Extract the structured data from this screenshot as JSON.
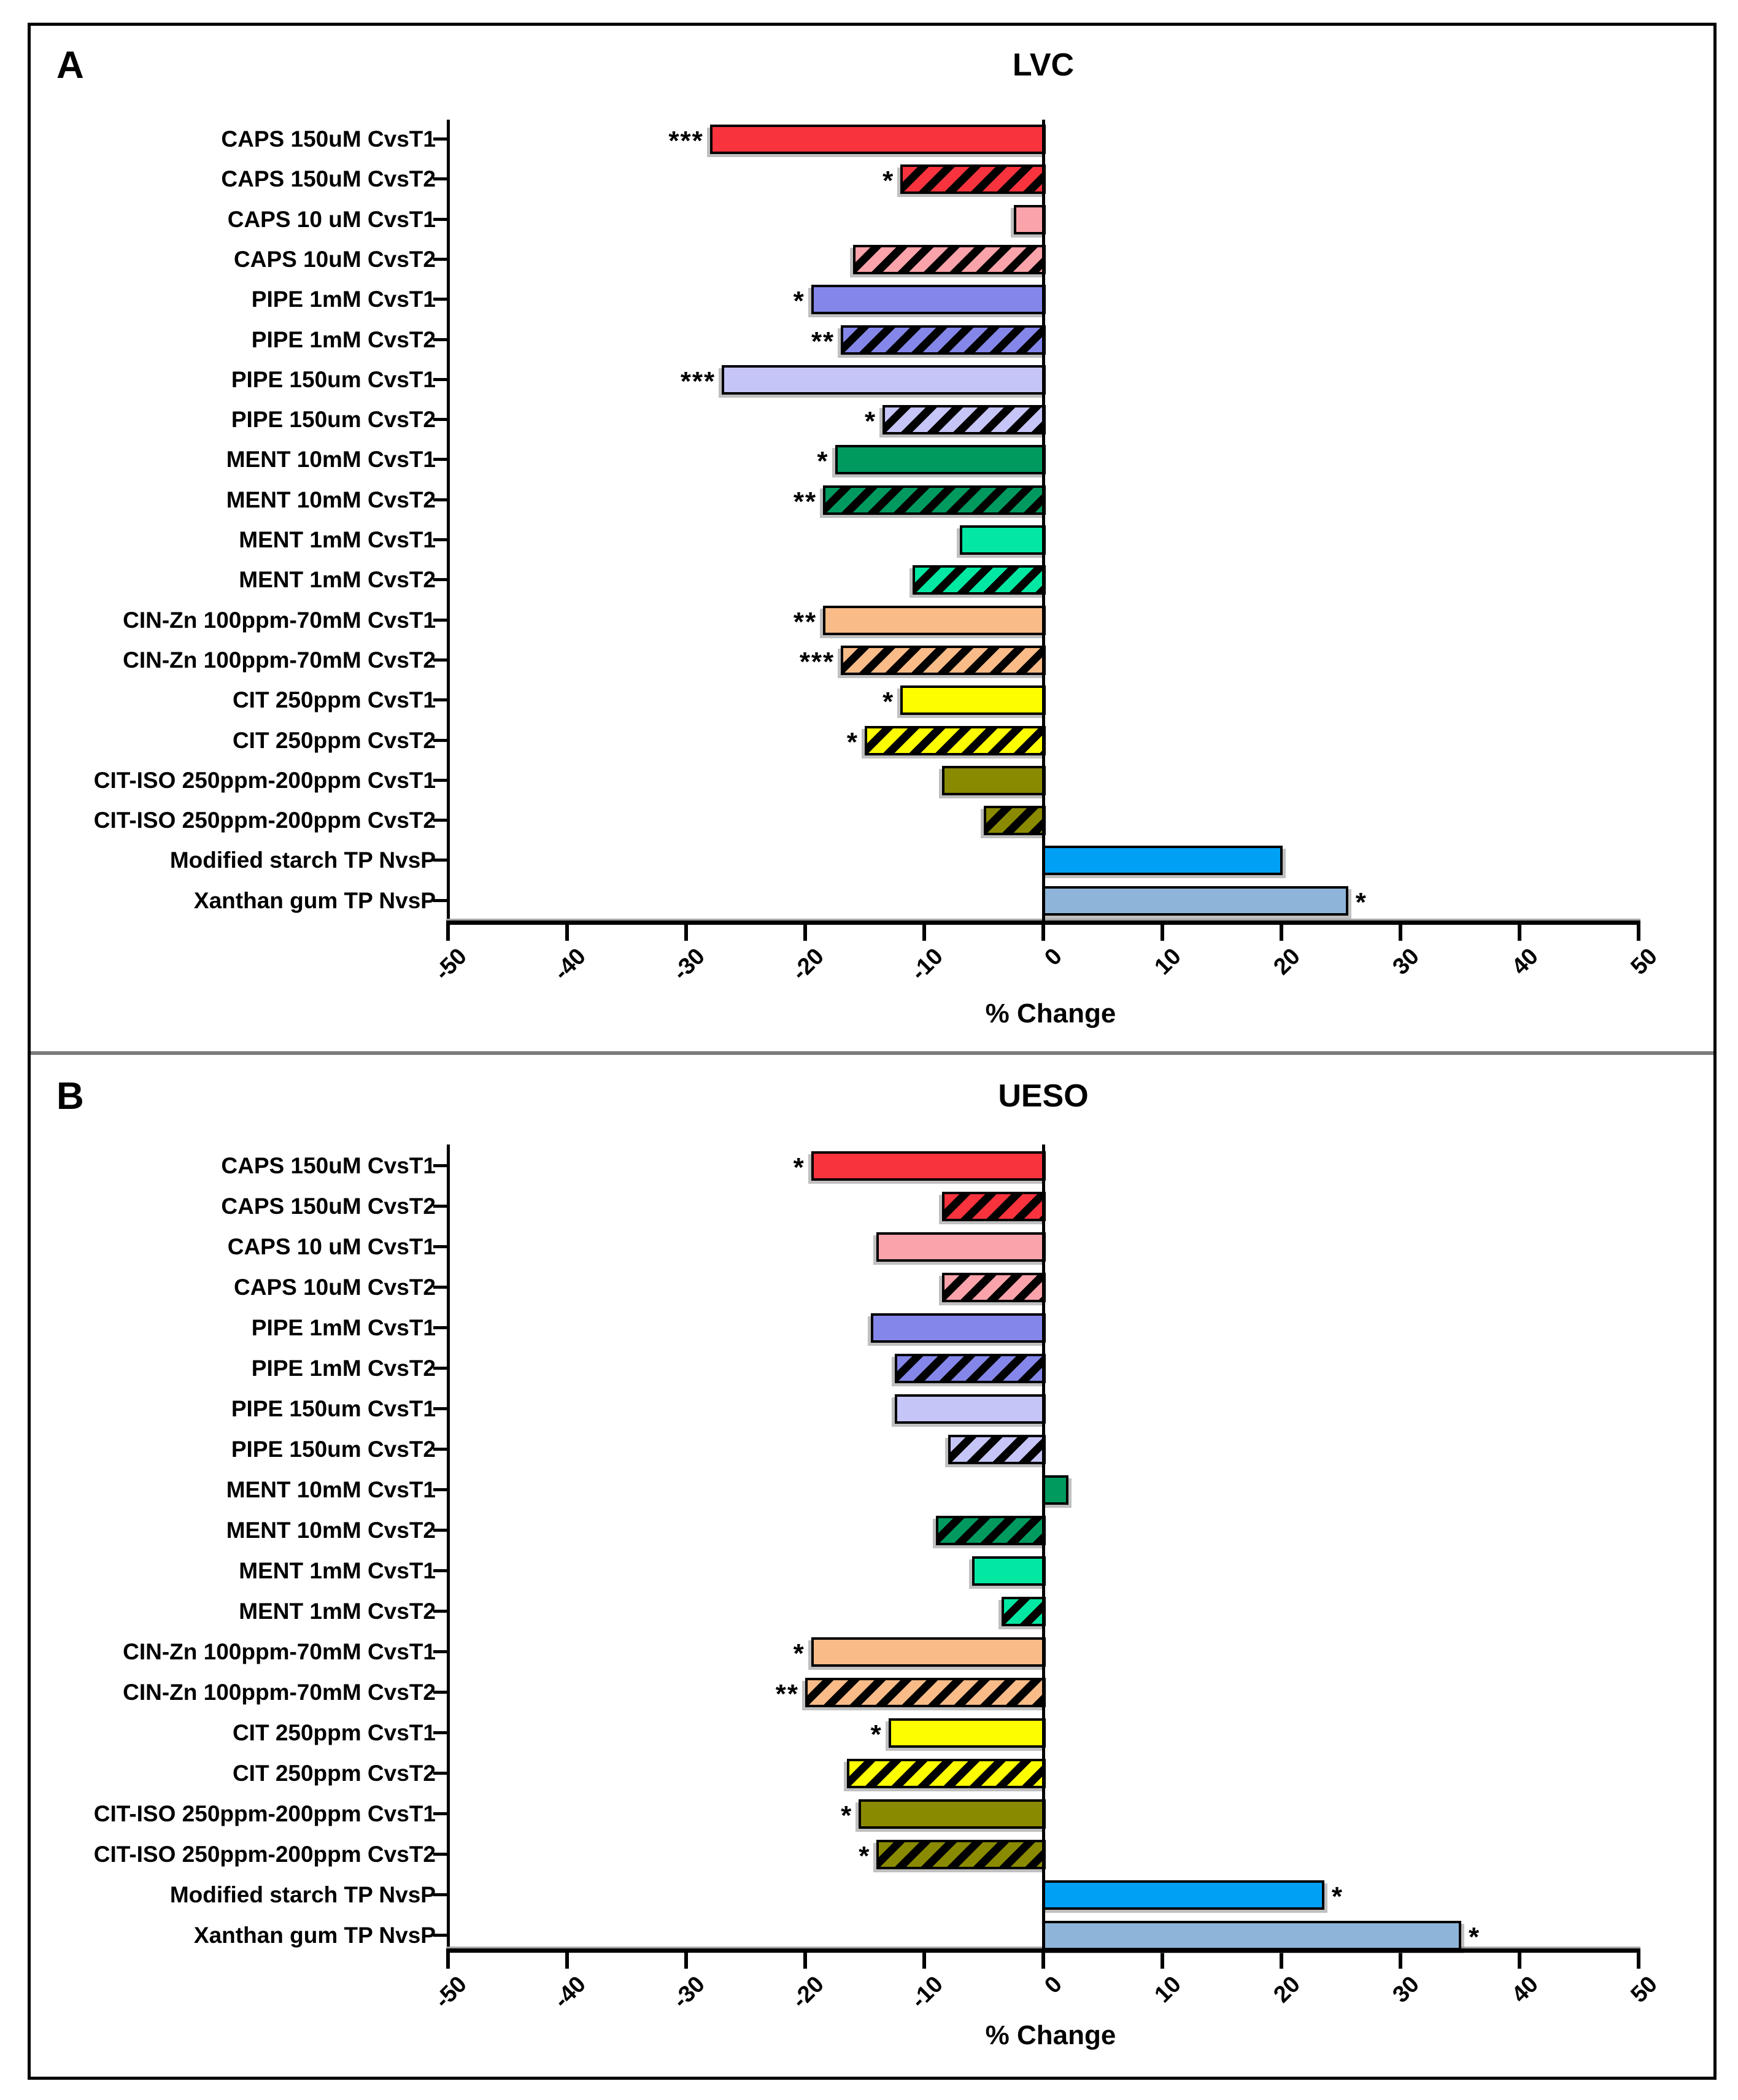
{
  "figure": {
    "xlabel": "% Change",
    "axis": {
      "min": -50,
      "max": 50,
      "step": 10,
      "tick_labels": [
        "-50",
        "-40",
        "-30",
        "-20",
        "-10",
        "0",
        "10",
        "20",
        "30",
        "40",
        "50"
      ]
    },
    "colors": {
      "red": "#F8333D",
      "pink": "#FBA3AA",
      "violet": "#8487E9",
      "lavender": "#C6C5F7",
      "seagreen": "#009A5F",
      "springgreen": "#02E8A2",
      "sandy": "#F9BB87",
      "yellow": "#FDFD00",
      "olive": "#8A8A00",
      "azure": "#00A1F5",
      "steel": "#8EB5D9",
      "hatch": "#000000",
      "axis": "#000000",
      "divider": "#7C7C7C"
    },
    "panels": [
      {
        "letter": "A",
        "title": "LVC",
        "rows": [
          {
            "label": "CAPS 150uM CvsT1",
            "value": -28,
            "sig": "***",
            "color": "red",
            "hatched": false
          },
          {
            "label": "CAPS 150uM CvsT2",
            "value": -12,
            "sig": "*",
            "color": "red",
            "hatched": true
          },
          {
            "label": "CAPS 10 uM CvsT1",
            "value": -2.5,
            "sig": "",
            "color": "pink",
            "hatched": false
          },
          {
            "label": "CAPS 10uM CvsT2",
            "value": -16,
            "sig": "",
            "color": "pink",
            "hatched": true
          },
          {
            "label": "PIPE 1mM CvsT1",
            "value": -19.5,
            "sig": "*",
            "color": "violet",
            "hatched": false
          },
          {
            "label": "PIPE 1mM CvsT2",
            "value": -17,
            "sig": "**",
            "color": "violet",
            "hatched": true
          },
          {
            "label": "PIPE 150um CvsT1",
            "value": -27,
            "sig": "***",
            "color": "lavender",
            "hatched": false
          },
          {
            "label": "PIPE 150um CvsT2",
            "value": -13.5,
            "sig": "*",
            "color": "lavender",
            "hatched": true
          },
          {
            "label": "MENT 10mM CvsT1",
            "value": -17.5,
            "sig": "*",
            "color": "seagreen",
            "hatched": false
          },
          {
            "label": "MENT 10mM CvsT2",
            "value": -18.5,
            "sig": "**",
            "color": "seagreen",
            "hatched": true
          },
          {
            "label": "MENT 1mM CvsT1",
            "value": -7,
            "sig": "",
            "color": "springgreen",
            "hatched": false
          },
          {
            "label": "MENT 1mM CvsT2",
            "value": -11,
            "sig": "",
            "color": "springgreen",
            "hatched": true
          },
          {
            "label": "CIN-Zn 100ppm-70mM CvsT1",
            "value": -18.5,
            "sig": "**",
            "color": "sandy",
            "hatched": false
          },
          {
            "label": "CIN-Zn 100ppm-70mM CvsT2",
            "value": -17,
            "sig": "***",
            "color": "sandy",
            "hatched": true
          },
          {
            "label": "CIT 250ppm CvsT1",
            "value": -12,
            "sig": "*",
            "color": "yellow",
            "hatched": false
          },
          {
            "label": "CIT 250ppm CvsT2",
            "value": -15,
            "sig": "*",
            "color": "yellow",
            "hatched": true
          },
          {
            "label": "CIT-ISO 250ppm-200ppm CvsT1",
            "value": -8.5,
            "sig": "",
            "color": "olive",
            "hatched": false
          },
          {
            "label": "CIT-ISO 250ppm-200ppm CvsT2",
            "value": -5,
            "sig": "",
            "color": "olive",
            "hatched": true
          },
          {
            "label": "Modified starch TP NvsP",
            "value": 20,
            "sig": "",
            "color": "azure",
            "hatched": false
          },
          {
            "label": "Xanthan gum TP NvsP",
            "value": 25.5,
            "sig": "*",
            "color": "steel",
            "hatched": false
          }
        ]
      },
      {
        "letter": "B",
        "title": "UESO",
        "rows": [
          {
            "label": "CAPS 150uM CvsT1",
            "value": -19.5,
            "sig": "*",
            "color": "red",
            "hatched": false
          },
          {
            "label": "CAPS 150uM CvsT2",
            "value": -8.5,
            "sig": "",
            "color": "red",
            "hatched": true
          },
          {
            "label": "CAPS 10 uM CvsT1",
            "value": -14,
            "sig": "",
            "color": "pink",
            "hatched": false
          },
          {
            "label": "CAPS 10uM CvsT2",
            "value": -8.5,
            "sig": "",
            "color": "pink",
            "hatched": true
          },
          {
            "label": "PIPE 1mM CvsT1",
            "value": -14.5,
            "sig": "",
            "color": "violet",
            "hatched": false
          },
          {
            "label": "PIPE 1mM CvsT2",
            "value": -12.5,
            "sig": "",
            "color": "violet",
            "hatched": true
          },
          {
            "label": "PIPE 150um CvsT1",
            "value": -12.5,
            "sig": "",
            "color": "lavender",
            "hatched": false
          },
          {
            "label": "PIPE 150um CvsT2",
            "value": -8,
            "sig": "",
            "color": "lavender",
            "hatched": true
          },
          {
            "label": "MENT 10mM CvsT1",
            "value": 2,
            "sig": "",
            "color": "seagreen",
            "hatched": false
          },
          {
            "label": "MENT 10mM CvsT2",
            "value": -9,
            "sig": "",
            "color": "seagreen",
            "hatched": true
          },
          {
            "label": "MENT 1mM CvsT1",
            "value": -6,
            "sig": "",
            "color": "springgreen",
            "hatched": false
          },
          {
            "label": "MENT 1mM CvsT2",
            "value": -3.5,
            "sig": "",
            "color": "springgreen",
            "hatched": true
          },
          {
            "label": "CIN-Zn 100ppm-70mM CvsT1",
            "value": -19.5,
            "sig": "*",
            "color": "sandy",
            "hatched": false
          },
          {
            "label": "CIN-Zn 100ppm-70mM CvsT2",
            "value": -20,
            "sig": "**",
            "color": "sandy",
            "hatched": true
          },
          {
            "label": "CIT 250ppm CvsT1",
            "value": -13,
            "sig": "*",
            "color": "yellow",
            "hatched": false
          },
          {
            "label": "CIT 250ppm CvsT2",
            "value": -16.5,
            "sig": "",
            "color": "yellow",
            "hatched": true
          },
          {
            "label": "CIT-ISO 250ppm-200ppm CvsT1",
            "value": -15.5,
            "sig": "*",
            "color": "olive",
            "hatched": false
          },
          {
            "label": "CIT-ISO 250ppm-200ppm CvsT2",
            "value": -14,
            "sig": "*",
            "color": "olive",
            "hatched": true
          },
          {
            "label": "Modified starch TP NvsP",
            "value": 23.5,
            "sig": "*",
            "color": "azure",
            "hatched": false
          },
          {
            "label": "Xanthan gum TP NvsP",
            "value": 35,
            "sig": "*",
            "color": "steel",
            "hatched": false
          }
        ]
      }
    ]
  },
  "chart_data": [
    {
      "type": "bar",
      "orientation": "horizontal",
      "title": "LVC",
      "panel_letter": "A",
      "xlabel": "% Change",
      "xlim": [
        -50,
        50
      ],
      "x_ticks": [
        -50,
        -40,
        -30,
        -20,
        -10,
        0,
        10,
        20,
        30,
        40,
        50
      ],
      "grid": false,
      "legend": "none",
      "categories": [
        "CAPS 150uM CvsT1",
        "CAPS 150uM CvsT2",
        "CAPS 10 uM CvsT1",
        "CAPS 10uM CvsT2",
        "PIPE 1mM CvsT1",
        "PIPE 1mM CvsT2",
        "PIPE 150um CvsT1",
        "PIPE 150um CvsT2",
        "MENT 10mM CvsT1",
        "MENT 10mM CvsT2",
        "MENT 1mM CvsT1",
        "MENT 1mM CvsT2",
        "CIN-Zn 100ppm-70mM CvsT1",
        "CIN-Zn 100ppm-70mM CvsT2",
        "CIT 250ppm CvsT1",
        "CIT 250ppm CvsT2",
        "CIT-ISO 250ppm-200ppm CvsT1",
        "CIT-ISO 250ppm-200ppm CvsT2",
        "Modified starch TP NvsP",
        "Xanthan gum TP NvsP"
      ],
      "values": [
        -28,
        -12,
        -2.5,
        -16,
        -19.5,
        -17,
        -27,
        -13.5,
        -17.5,
        -18.5,
        -7,
        -11,
        -18.5,
        -17,
        -12,
        -15,
        -8.5,
        -5,
        20,
        25.5
      ],
      "significance": [
        "***",
        "*",
        "",
        "",
        "*",
        "**",
        "***",
        "*",
        "*",
        "**",
        "",
        "",
        "**",
        "***",
        "*",
        "*",
        "",
        "",
        "",
        "*"
      ]
    },
    {
      "type": "bar",
      "orientation": "horizontal",
      "title": "UESO",
      "panel_letter": "B",
      "xlabel": "% Change",
      "xlim": [
        -50,
        50
      ],
      "x_ticks": [
        -50,
        -40,
        -30,
        -20,
        -10,
        0,
        10,
        20,
        30,
        40,
        50
      ],
      "grid": false,
      "legend": "none",
      "categories": [
        "CAPS 150uM CvsT1",
        "CAPS 150uM CvsT2",
        "CAPS 10 uM CvsT1",
        "CAPS 10uM CvsT2",
        "PIPE 1mM CvsT1",
        "PIPE 1mM CvsT2",
        "PIPE 150um CvsT1",
        "PIPE 150um CvsT2",
        "MENT 10mM CvsT1",
        "MENT 10mM CvsT2",
        "MENT 1mM CvsT1",
        "MENT 1mM CvsT2",
        "CIN-Zn 100ppm-70mM CvsT1",
        "CIN-Zn 100ppm-70mM CvsT2",
        "CIT 250ppm CvsT1",
        "CIT 250ppm CvsT2",
        "CIT-ISO 250ppm-200ppm CvsT1",
        "CIT-ISO 250ppm-200ppm CvsT2",
        "Modified starch TP NvsP",
        "Xanthan gum TP NvsP"
      ],
      "values": [
        -19.5,
        -8.5,
        -14,
        -8.5,
        -14.5,
        -12.5,
        -12.5,
        -8,
        2,
        -9,
        -6,
        -3.5,
        -19.5,
        -20,
        -13,
        -16.5,
        -15.5,
        -14,
        23.5,
        35
      ],
      "significance": [
        "*",
        "",
        "",
        "",
        "",
        "",
        "",
        "",
        "",
        "",
        "",
        "",
        "*",
        "**",
        "*",
        "",
        "*",
        "*",
        "*",
        "*"
      ]
    }
  ]
}
